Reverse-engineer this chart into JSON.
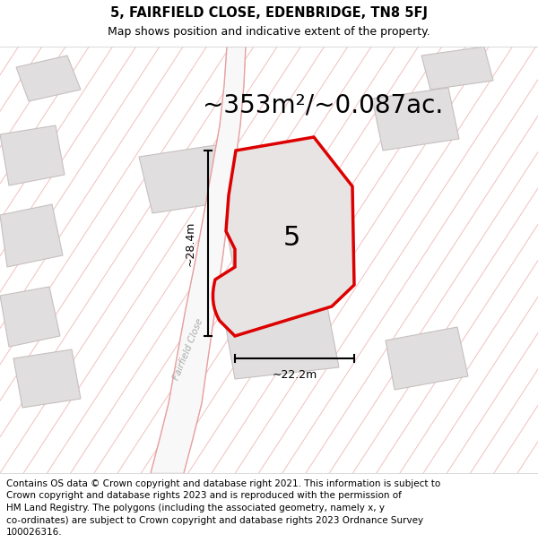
{
  "title_line1": "5, FAIRFIELD CLOSE, EDENBRIDGE, TN8 5FJ",
  "title_line2": "Map shows position and indicative extent of the property.",
  "area_text": "~353m²/~0.087ac.",
  "dim_width": "~22.2m",
  "dim_height": "~28.4m",
  "plot_label": "5",
  "road_label": "Fairfield Close",
  "footer_lines": [
    "Contains OS data © Crown copyright and database right 2021. This information is subject to",
    "Crown copyright and database rights 2023 and is reproduced with the permission of",
    "HM Land Registry. The polygons (including the associated geometry, namely x, y",
    "co-ordinates) are subject to Crown copyright and database rights 2023 Ordnance Survey",
    "100026316."
  ],
  "bg_color": "#f8f5f5",
  "building_color": "#e0dede",
  "building_edge": "#c8c0c0",
  "road_color": "#f8f8f8",
  "plot_fill": "#e8e4e4",
  "plot_edge": "#dd0000",
  "hatch_color": "#f0c0c0",
  "title_fontsize": 10,
  "subtitle_fontsize": 9,
  "area_fontsize": 20,
  "label_fontsize": 22,
  "footer_fontsize": 7.5,
  "dim_fontsize": 9
}
